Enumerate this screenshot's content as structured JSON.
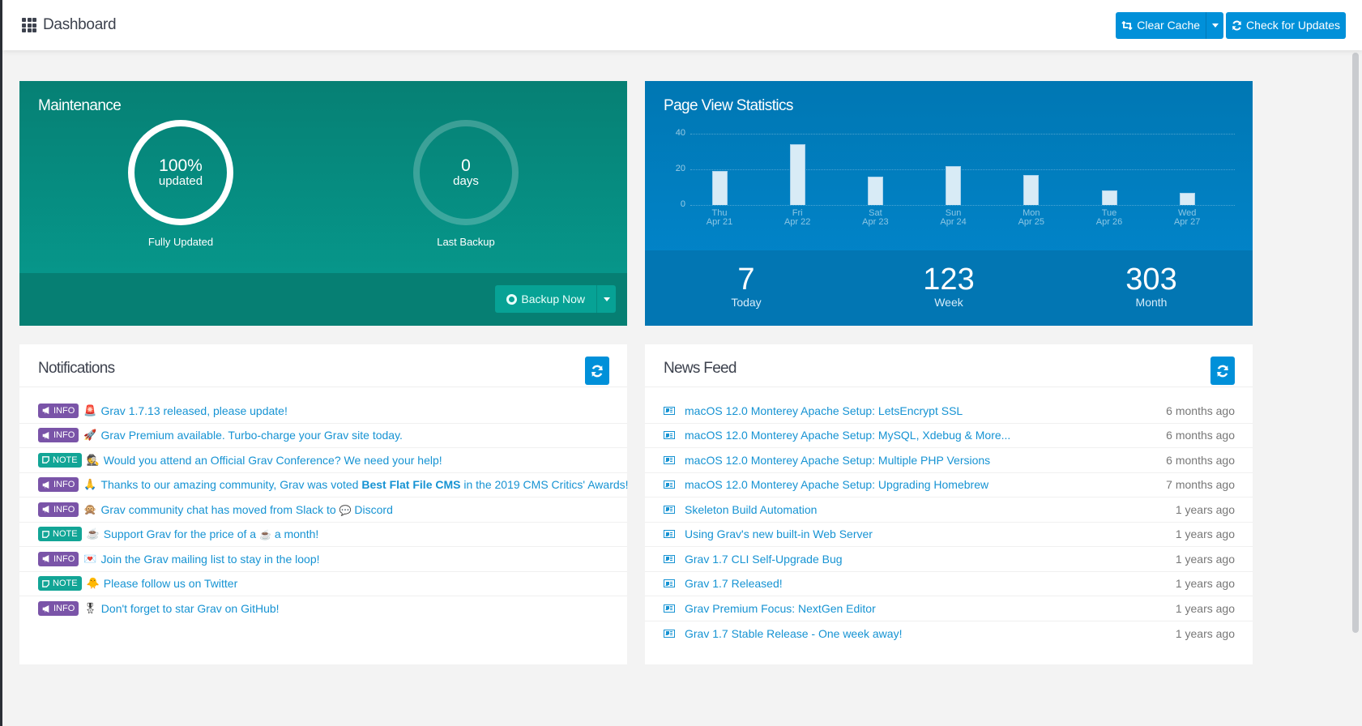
{
  "header": {
    "title": "Dashboard",
    "clear_cache_label": "Clear Cache",
    "check_updates_label": "Check for Updates"
  },
  "maintenance": {
    "title": "Maintenance",
    "updated_value": "100%",
    "updated_unit": "updated",
    "updated_label": "Fully Updated",
    "backup_value": "0",
    "backup_unit": "days",
    "backup_label": "Last Backup",
    "backup_button": "Backup Now"
  },
  "stats": {
    "title": "Page View Statistics",
    "today": "7",
    "today_label": "Today",
    "week": "123",
    "week_label": "Week",
    "month": "303",
    "month_label": "Month"
  },
  "chart_data": {
    "type": "bar",
    "title": "Page View Statistics",
    "categories": [
      "Thu Apr 21",
      "Fri Apr 22",
      "Sat Apr 23",
      "Sun Apr 24",
      "Mon Apr 25",
      "Tue Apr 26",
      "Wed Apr 27"
    ],
    "day_labels": [
      "Thu",
      "Fri",
      "Sat",
      "Sun",
      "Mon",
      "Tue",
      "Wed"
    ],
    "date_labels": [
      "Apr 21",
      "Apr 22",
      "Apr 23",
      "Apr 24",
      "Apr 25",
      "Apr 26",
      "Apr 27"
    ],
    "values": [
      19,
      34,
      16,
      22,
      17,
      8,
      7
    ],
    "yticks": [
      0,
      20,
      40
    ],
    "ylim": [
      0,
      40
    ],
    "xlabel": "",
    "ylabel": "",
    "grid": true,
    "bar_color": "#d8ebf6"
  },
  "notifications": {
    "title": "Notifications",
    "items": [
      {
        "type": "INFO",
        "emoji": "🚨",
        "text": "Grav 1.7.13 released, please update!"
      },
      {
        "type": "INFO",
        "emoji": "🚀",
        "text": "Grav Premium available. Turbo-charge your Grav site today."
      },
      {
        "type": "NOTE",
        "emoji": "🕵",
        "text": "Would you attend an Official Grav Conference? We need your help!"
      },
      {
        "type": "INFO",
        "emoji": "🙏",
        "text_before": "Thanks to our amazing community, Grav was voted ",
        "text_bold": "Best Flat File CMS",
        "text_after": " in the 2019 CMS Critics' Awards!"
      },
      {
        "type": "INFO",
        "emoji": "🙊",
        "text": "Grav community chat has moved from Slack to",
        "icon": "💬",
        "text_after": "Discord"
      },
      {
        "type": "NOTE",
        "emoji": "☕",
        "text": "Support Grav for the price of a",
        "icon": "☕",
        "text_after": "a month!"
      },
      {
        "type": "INFO",
        "emoji": "💌",
        "text": "Join the Grav mailing list to stay in the loop!"
      },
      {
        "type": "NOTE",
        "emoji": "🐥",
        "text": "Please follow us on Twitter"
      },
      {
        "type": "INFO",
        "emoji": "🎖",
        "text": "Don't forget to star Grav on GitHub!"
      }
    ]
  },
  "news": {
    "title": "News Feed",
    "items": [
      {
        "title": "macOS 12.0 Monterey Apache Setup: LetsEncrypt SSL",
        "ago": "6 months ago"
      },
      {
        "title": "macOS 12.0 Monterey Apache Setup: MySQL, Xdebug & More...",
        "ago": "6 months ago"
      },
      {
        "title": "macOS 12.0 Monterey Apache Setup: Multiple PHP Versions",
        "ago": "6 months ago"
      },
      {
        "title": "macOS 12.0 Monterey Apache Setup: Upgrading Homebrew",
        "ago": "7 months ago"
      },
      {
        "title": "Skeleton Build Automation",
        "ago": "1 years ago"
      },
      {
        "title": "Using Grav's new built-in Web Server",
        "ago": "1 years ago"
      },
      {
        "title": "Grav 1.7 CLI Self-Upgrade Bug",
        "ago": "1 years ago"
      },
      {
        "title": "Grav 1.7 Released!",
        "ago": "1 years ago"
      },
      {
        "title": "Grav Premium Focus: NextGen Editor",
        "ago": "1 years ago"
      },
      {
        "title": "Grav 1.7 Stable Release - One week away!",
        "ago": "1 years ago"
      }
    ]
  }
}
